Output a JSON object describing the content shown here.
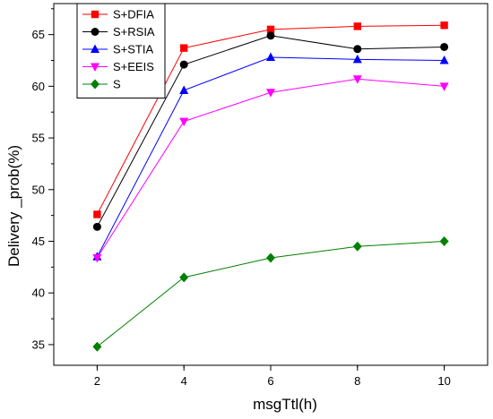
{
  "chart_data": {
    "type": "line",
    "title": "",
    "xlabel": "msgTtl(h)",
    "ylabel": "Delivery _prob(%)",
    "x": [
      2,
      4,
      6,
      8,
      10
    ],
    "xlim": [
      1,
      11
    ],
    "ylim": [
      33,
      68
    ],
    "xticks": [
      "2",
      "4",
      "6",
      "8",
      "10"
    ],
    "yticks": [
      "35",
      "40",
      "45",
      "50",
      "55",
      "60",
      "65"
    ],
    "grid": false,
    "legend_position": "top-left",
    "series": [
      {
        "name": "S+DFIA",
        "color": "#ff0000",
        "marker": "square",
        "values": [
          47.6,
          63.7,
          65.5,
          65.8,
          65.9
        ]
      },
      {
        "name": "S+RSIA",
        "color": "#000000",
        "marker": "circle",
        "values": [
          46.4,
          62.1,
          64.9,
          63.6,
          63.8
        ]
      },
      {
        "name": "S+STIA",
        "color": "#0000ff",
        "marker": "triangle-up",
        "values": [
          43.5,
          59.6,
          62.8,
          62.6,
          62.5
        ]
      },
      {
        "name": "S+EEIS",
        "color": "#ff00ff",
        "marker": "triangle-down",
        "values": [
          43.4,
          56.6,
          59.4,
          60.7,
          60.0
        ]
      },
      {
        "name": "S",
        "color": "#008000",
        "marker": "diamond",
        "values": [
          34.8,
          41.5,
          43.4,
          44.5,
          45.0
        ]
      }
    ]
  }
}
